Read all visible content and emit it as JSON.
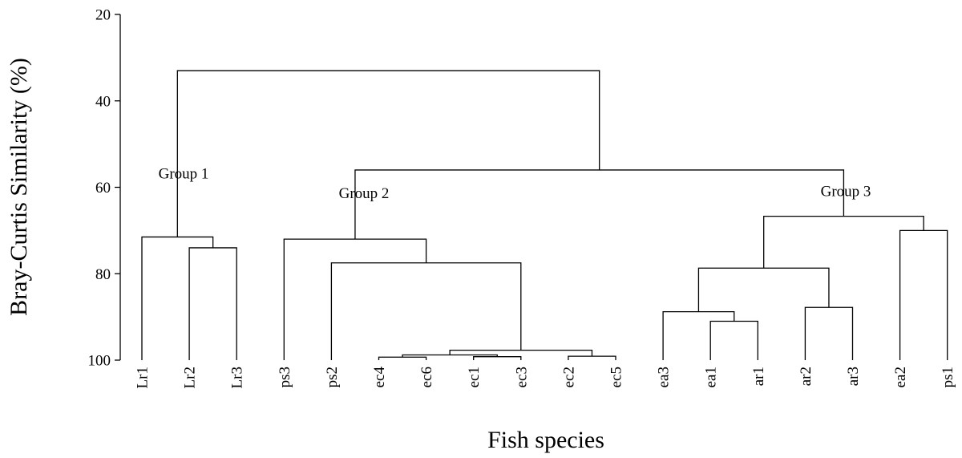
{
  "chart_data": {
    "type": "dendrogram",
    "ylabel": "Bray-Curtis Similarity (%)",
    "xlabel": "Fish species",
    "ylim": [
      20,
      100
    ],
    "y_ticks": [
      20,
      40,
      60,
      80,
      100
    ],
    "leaves": [
      "Lr1",
      "Lr2",
      "Lr3",
      "ps3",
      "ps2",
      "ec4",
      "ec6",
      "ec1",
      "ec3",
      "ec2",
      "ec5",
      "ea3",
      "ea1",
      "ar1",
      "ar2",
      "ar3",
      "ea2",
      "ps1"
    ],
    "merges": [
      {
        "a": "ec1",
        "b": "ec3",
        "similarity": 99.2
      },
      {
        "a": "ec4",
        "b": "ec6",
        "similarity": 99.3
      },
      {
        "a": "ec2",
        "b": "ec5",
        "similarity": 99.1
      },
      {
        "a": [
          "ec4",
          "ec6"
        ],
        "b": [
          "ec1",
          "ec3"
        ],
        "similarity": 98.8
      },
      {
        "a": [
          "ec4",
          "ec6",
          "ec1",
          "ec3"
        ],
        "b": [
          "ec2",
          "ec5"
        ],
        "similarity": 97.7
      },
      {
        "a": "ea1",
        "b": "ar1",
        "similarity": 91
      },
      {
        "a": "ea3",
        "b": [
          "ea1",
          "ar1"
        ],
        "similarity": 88.8
      },
      {
        "a": "ar2",
        "b": "ar3",
        "similarity": 87.8
      },
      {
        "a": [
          "ea3",
          "ea1",
          "ar1"
        ],
        "b": [
          "ar2",
          "ar3"
        ],
        "similarity": 78.7
      },
      {
        "a": "ea2",
        "b": "ps1",
        "similarity": 70
      },
      {
        "a": [
          "ea3",
          "ea1",
          "ar1",
          "ar2",
          "ar3"
        ],
        "b": [
          "ea2",
          "ps1"
        ],
        "similarity": 66.7
      },
      {
        "a": "Lr2",
        "b": "Lr3",
        "similarity": 74
      },
      {
        "a": "Lr1",
        "b": [
          "Lr2",
          "Lr3"
        ],
        "similarity": 71.5
      },
      {
        "a": "ps2",
        "b": [
          "ec4",
          "ec6",
          "ec1",
          "ec3",
          "ec2",
          "ec5"
        ],
        "similarity": 77.5
      },
      {
        "a": "ps3",
        "b": [
          "ps2",
          "ec4",
          "ec6",
          "ec1",
          "ec3",
          "ec2",
          "ec5"
        ],
        "similarity": 72
      },
      {
        "a": [
          "ps3",
          "ps2",
          "ec4",
          "ec6",
          "ec1",
          "ec3",
          "ec2",
          "ec5"
        ],
        "b": [
          "ea3",
          "ea1",
          "ar1",
          "ar2",
          "ar3",
          "ea2",
          "ps1"
        ],
        "similarity": 56
      },
      {
        "a": [
          "Lr1",
          "Lr2",
          "Lr3"
        ],
        "b": [
          "ps3",
          "ps2",
          "ec4",
          "ec6",
          "ec1",
          "ec3",
          "ec2",
          "ec5",
          "ea3",
          "ea1",
          "ar1",
          "ar2",
          "ar3",
          "ea2",
          "ps1"
        ],
        "similarity": 33
      }
    ],
    "annotations": [
      {
        "text": "Group 1",
        "near_similarity": 58
      },
      {
        "text": "Group 2",
        "near_similarity": 62.5
      },
      {
        "text": "Group 3",
        "near_similarity": 62
      }
    ]
  }
}
